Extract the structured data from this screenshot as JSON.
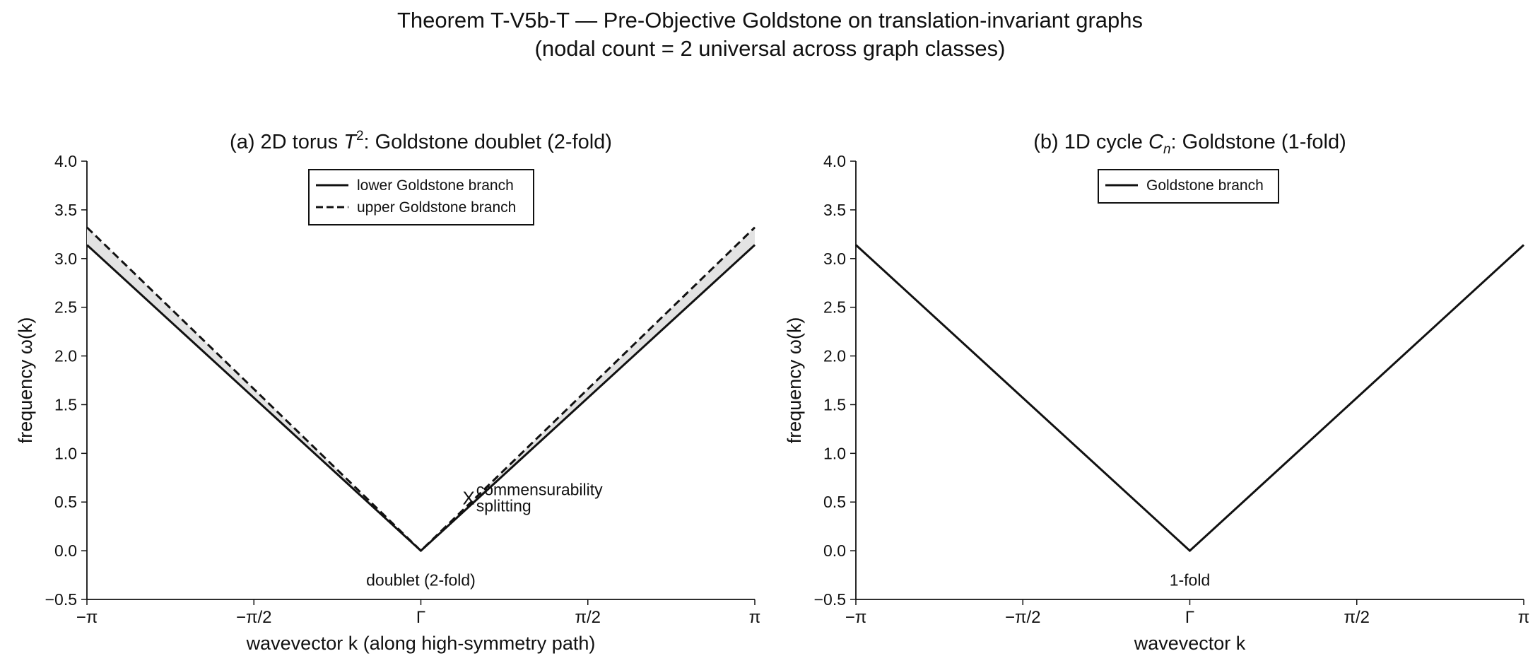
{
  "suptitle": {
    "line1": "Theorem T-V5b-T  —  Pre-Objective Goldstone on translation-invariant graphs",
    "line2": "(nodal count = 2 universal across graph classes)"
  },
  "chart_data": [
    {
      "type": "line",
      "title_prefix": "(a)  2D torus  ",
      "title_math": "T",
      "title_sup": "2",
      "title_suffix": ":  Goldstone doublet (2-fold)",
      "xlabel": "wavevector  k  (along high-symmetry path)",
      "ylabel": "frequency  ω(k)",
      "xlim": [
        -3.14159,
        3.14159
      ],
      "ylim": [
        -0.5,
        4.0
      ],
      "xticks": [
        -3.14159,
        -1.5708,
        0,
        1.5708,
        3.14159
      ],
      "xticklabels": [
        "−π",
        "−π/2",
        "Γ",
        "π/2",
        "π"
      ],
      "yticks": [
        -0.5,
        0.0,
        0.5,
        1.0,
        1.5,
        2.0,
        2.5,
        3.0,
        3.5,
        4.0
      ],
      "yticklabels": [
        "−0.5",
        "0.0",
        "0.5",
        "1.0",
        "1.5",
        "2.0",
        "2.5",
        "3.0",
        "3.5",
        "4.0"
      ],
      "grid": false,
      "legend_position": "top-center",
      "series": [
        {
          "name": "lower Goldstone branch",
          "style": "solid",
          "color": "#111111",
          "x": [
            -3.14159,
            0,
            3.14159
          ],
          "y": [
            3.14,
            0.0,
            3.14
          ]
        },
        {
          "name": "upper Goldstone branch",
          "style": "dashed",
          "color": "#111111",
          "x": [
            -3.14159,
            0,
            3.14159
          ],
          "y": [
            3.32,
            0.0,
            3.32
          ]
        }
      ],
      "fill_between": {
        "color": "#e3e3e3"
      },
      "annotations": [
        {
          "text": "doublet (2-fold)",
          "x": 0.0,
          "y": -0.3
        },
        {
          "text": "commensurability",
          "x": 0.52,
          "y": 0.63
        },
        {
          "text": "splitting",
          "x": 0.52,
          "y": 0.46
        }
      ],
      "marker": {
        "symbol": "X",
        "x": 0.45,
        "y": 0.55
      }
    },
    {
      "type": "line",
      "title_prefix": "(b)  1D cycle  ",
      "title_math": "C",
      "title_sub": "n",
      "title_suffix": ":  Goldstone (1-fold)",
      "xlabel": "wavevector  k",
      "ylabel": "frequency  ω(k)",
      "xlim": [
        -3.14159,
        3.14159
      ],
      "ylim": [
        -0.5,
        4.0
      ],
      "xticks": [
        -3.14159,
        -1.5708,
        0,
        1.5708,
        3.14159
      ],
      "xticklabels": [
        "−π",
        "−π/2",
        "Γ",
        "π/2",
        "π"
      ],
      "yticks": [
        -0.5,
        0.0,
        0.5,
        1.0,
        1.5,
        2.0,
        2.5,
        3.0,
        3.5,
        4.0
      ],
      "yticklabels": [
        "−0.5",
        "0.0",
        "0.5",
        "1.0",
        "1.5",
        "2.0",
        "2.5",
        "3.0",
        "3.5",
        "4.0"
      ],
      "grid": false,
      "legend_position": "top-center",
      "series": [
        {
          "name": "Goldstone branch",
          "style": "solid",
          "color": "#111111",
          "x": [
            -3.14159,
            0,
            3.14159
          ],
          "y": [
            3.14,
            0.0,
            3.14
          ]
        }
      ],
      "annotations": [
        {
          "text": "1-fold",
          "x": 0.0,
          "y": -0.3
        }
      ]
    }
  ]
}
